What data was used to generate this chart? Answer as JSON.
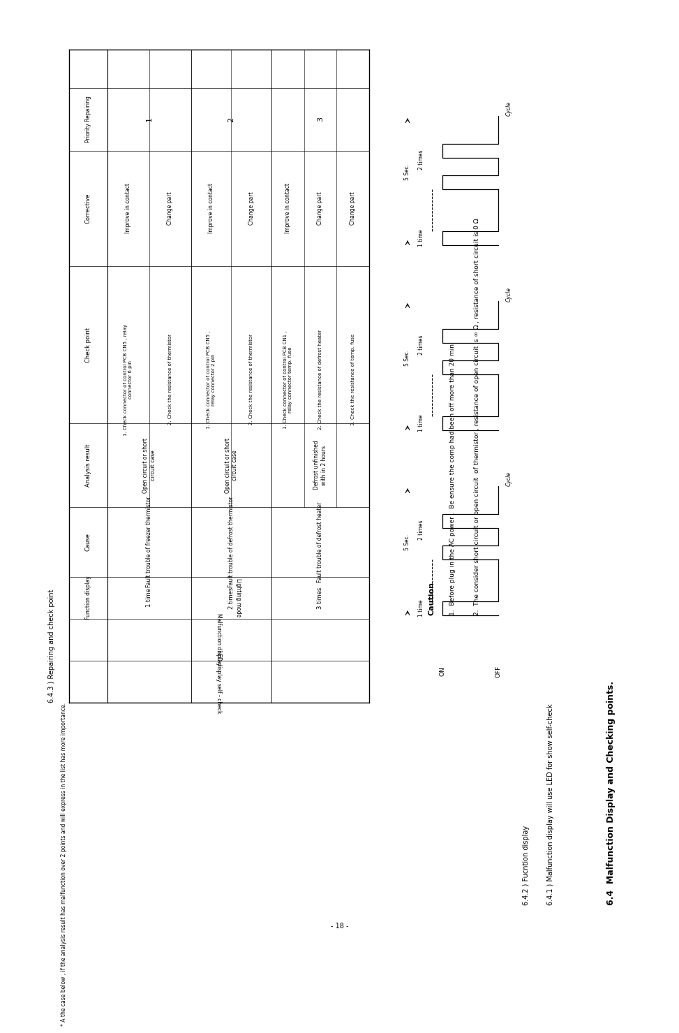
{
  "title": "6.4  Malfunction Display and Checking points.",
  "subtitle1": "6.4.1 ) Malfunction display will use LED for show self-check",
  "subtitle2": "6.4.2 ) Fucntion display",
  "section_643": "6.4.3 ) Repairing and check point",
  "footnote": "* A the case below , if the analysis result has malfunction over 2 points and will express in the list has more importance.",
  "caution_title": "Caution",
  "caution1": "1.  Before plug in the AC power .  Be ensure the comp had been off more than 20 min.",
  "caution2": "2.  The consider short circuit or open circuit  of thermistor , resistance of open circuit is ∞ Ω , resistance of short circuit is 0 Ω",
  "page_number": "- 18 -",
  "rows": [
    {
      "times": "1 time",
      "cause": "Fault trouble of freezer thermistor",
      "analysis": "Open circuit or short\ncircuit case",
      "check_points": [
        "1. Check connector of control PCB CN5 , relay\nconnector 6 pin",
        "2. Check the resistance of thermistor"
      ],
      "corrective": [
        "Improve in contact",
        "Change part"
      ],
      "priority": "1"
    },
    {
      "times": "2 times",
      "cause": "Fault trouble of defrost thermistor",
      "analysis": "Open circuit or short\ncircuit case",
      "check_points": [
        "1. Check connector of control PCB CN5 ,\nrelay connector 2 pin",
        "2. Check the resistance of thermistor"
      ],
      "corrective": [
        "Improve in contact",
        "Change part"
      ],
      "priority": "2"
    },
    {
      "times": "3 times",
      "cause": "Fault trouble of defrost heater",
      "analysis": "Defrost unfinished\nwith in 2 hours",
      "check_points": [
        "1. Check connector of control PCB CN1 ,\nrelay connector temp. fuse",
        "2. Check the resistance of defrost heater",
        "3. Check the resistance of temp. fuse"
      ],
      "corrective": [
        "Improve in contact",
        "Change part",
        "Change part"
      ],
      "priority": "3"
    }
  ]
}
